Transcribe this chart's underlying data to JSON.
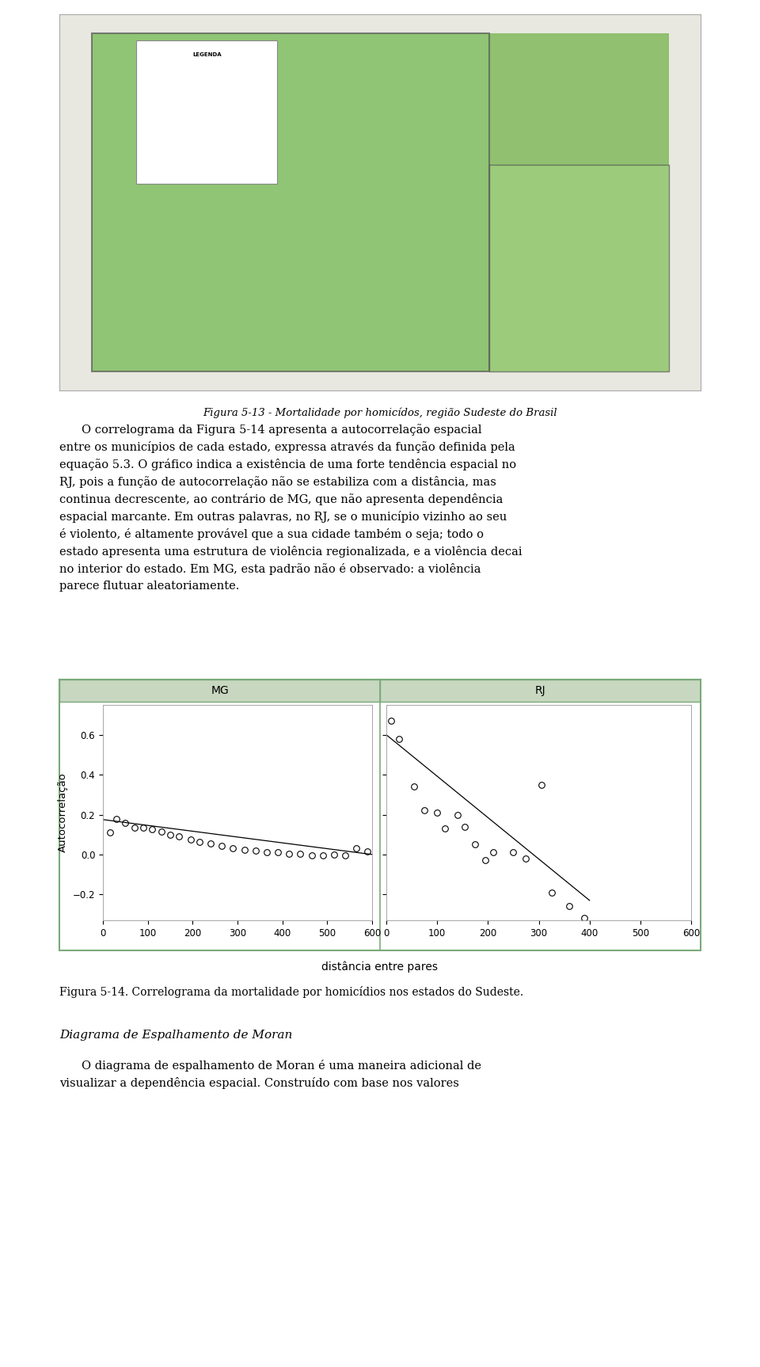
{
  "mg_x": [
    15,
    30,
    50,
    70,
    90,
    110,
    130,
    150,
    170,
    195,
    215,
    240,
    265,
    290,
    315,
    340,
    365,
    390,
    415,
    440,
    465,
    490,
    515,
    540,
    565,
    590
  ],
  "mg_y": [
    0.11,
    0.18,
    0.16,
    0.135,
    0.135,
    0.125,
    0.115,
    0.1,
    0.09,
    0.075,
    0.065,
    0.055,
    0.045,
    0.03,
    0.025,
    0.02,
    0.01,
    0.01,
    0.005,
    0.002,
    -0.003,
    -0.005,
    -0.002,
    -0.003,
    0.03,
    0.015
  ],
  "mg_fit_x": [
    0,
    600
  ],
  "mg_fit_y": [
    0.175,
    0.0
  ],
  "rj_x": [
    10,
    25,
    55,
    75,
    100,
    115,
    140,
    155,
    175,
    195,
    210,
    250,
    275,
    305,
    325,
    360,
    390
  ],
  "rj_y": [
    0.67,
    0.58,
    0.34,
    0.22,
    0.21,
    0.13,
    0.2,
    0.14,
    0.05,
    -0.03,
    0.01,
    0.01,
    -0.02,
    0.35,
    -0.19,
    -0.26,
    -0.32
  ],
  "rj_fit_x": [
    0,
    400
  ],
  "rj_fit_y": [
    0.6,
    -0.23
  ],
  "xlabel": "distância entre pares",
  "ylabel": "Autocorrelação",
  "title_mg": "MG",
  "title_rj": "RJ",
  "xlim_mg": [
    0,
    600
  ],
  "xlim_rj": [
    0,
    600
  ],
  "ylim_min": -0.33,
  "ylim_max": 0.75,
  "yticks": [
    -0.2,
    0.0,
    0.2,
    0.4,
    0.6
  ],
  "xticks": [
    0,
    100,
    200,
    300,
    400,
    500,
    600
  ],
  "map_caption": "Figura 5-13 - Mortalidade por homicídos, região Sudeste do Brasil",
  "fig_caption": "Figura 5-14. Correlograma da mortalidade por homicídios nos estados do Sudeste.",
  "panel_header_color": "#c8d8c0",
  "panel_border_color": "#7aaa7a",
  "background_color": "#ffffff",
  "text_para1_line1": "O correlograma da Figura 5-14 apresenta a autocorrelação espacial",
  "text_para1_line2": "entre os municípios de cada estado, expressa através da função definida pela",
  "text_para1_line3": "equação 5.3. O gráfico indica a existência de uma forte tendência espacial no",
  "text_para1_line4": "RJ, pois a função de autocorrelação não se estabiliza com a distância, mas",
  "text_para1_line5": "continua decrescente, ao contrário de MG, que não apresenta dependência",
  "text_para1_line6": "espacial marcante. Em outras palavras, no RJ, se o município vizinho ao seu",
  "text_para1_line7": "é violento, é altamente provável que a sua cidade também o seja; todo o",
  "text_para1_line8": "estado apresenta uma estrutura de violência regionalizada, e a violência decai",
  "text_para1_line9": "no interior do estado. Em MG, esta padrão não é observado: a violência",
  "text_para1_line10": "parece flutuar aleatoriamente.",
  "diag_title": "Diagrama de Espalhamento de Moran",
  "diag_para_line1": "O diagrama de espalhamento de Moran é uma maneira adicional de",
  "diag_para_line2": "visualizar a dependência espacial. Construído com base nos valores"
}
